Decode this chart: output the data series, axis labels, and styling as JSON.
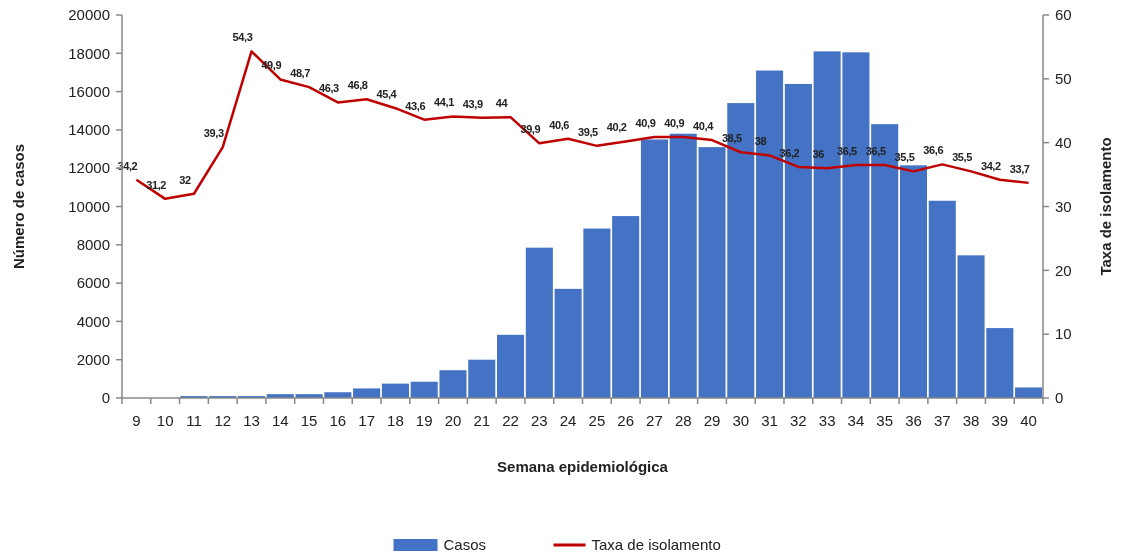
{
  "chart_data": {
    "type": "bar",
    "categories": [
      "9",
      "10",
      "11",
      "12",
      "13",
      "14",
      "15",
      "16",
      "17",
      "18",
      "19",
      "20",
      "21",
      "22",
      "23",
      "24",
      "25",
      "26",
      "27",
      "28",
      "29",
      "30",
      "31",
      "32",
      "33",
      "34",
      "35",
      "36",
      "37",
      "38",
      "39",
      "40"
    ],
    "xlabel": "Semana epidemiológica",
    "ylabel": "Número de casos",
    "y2label": "Taxa de isolamento",
    "ylim": [
      0,
      20000
    ],
    "yticks": [
      0,
      2000,
      4000,
      6000,
      8000,
      10000,
      12000,
      14000,
      16000,
      18000,
      20000
    ],
    "y2lim": [
      0,
      60
    ],
    "y2ticks": [
      0,
      10,
      20,
      30,
      40,
      50,
      60
    ],
    "series": [
      {
        "name": "Casos",
        "color": "#4472c4",
        "values": [
          0,
          0,
          100,
          100,
          100,
          200,
          200,
          300,
          500,
          750,
          850,
          1450,
          2000,
          3300,
          7850,
          5700,
          8850,
          9500,
          13500,
          13800,
          13100,
          15400,
          17100,
          16400,
          18100,
          18050,
          14300,
          12150,
          10300,
          7450,
          3650,
          550
        ]
      },
      {
        "name": "Taxa de isolamento",
        "type": "line",
        "axis": "y2",
        "color": "#c00000",
        "values": [
          34.2,
          31.2,
          32,
          39.3,
          54.3,
          49.9,
          48.7,
          46.3,
          46.8,
          45.4,
          43.6,
          44.1,
          43.9,
          44,
          39.9,
          40.6,
          39.5,
          40.2,
          40.9,
          40.9,
          40.4,
          38.5,
          38,
          36.2,
          36,
          36.5,
          36.5,
          35.5,
          36.6,
          35.5,
          34.2,
          33.7
        ],
        "value_labels": [
          "34,2",
          "31,2",
          "32",
          "39,3",
          "54,3",
          "49,9",
          "48,7",
          "46,3",
          "46,8",
          "45,4",
          "43,6",
          "44,1",
          "43,9",
          "44",
          "39,9",
          "40,6",
          "39,5",
          "40,2",
          "40,9",
          "40,9",
          "40,4",
          "38,5",
          "38",
          "36,2",
          "36",
          "36,5",
          "36,5",
          "35,5",
          "36,6",
          "35,5",
          "34,2",
          "33,7"
        ]
      }
    ],
    "legend": "bottom",
    "grid": false
  }
}
